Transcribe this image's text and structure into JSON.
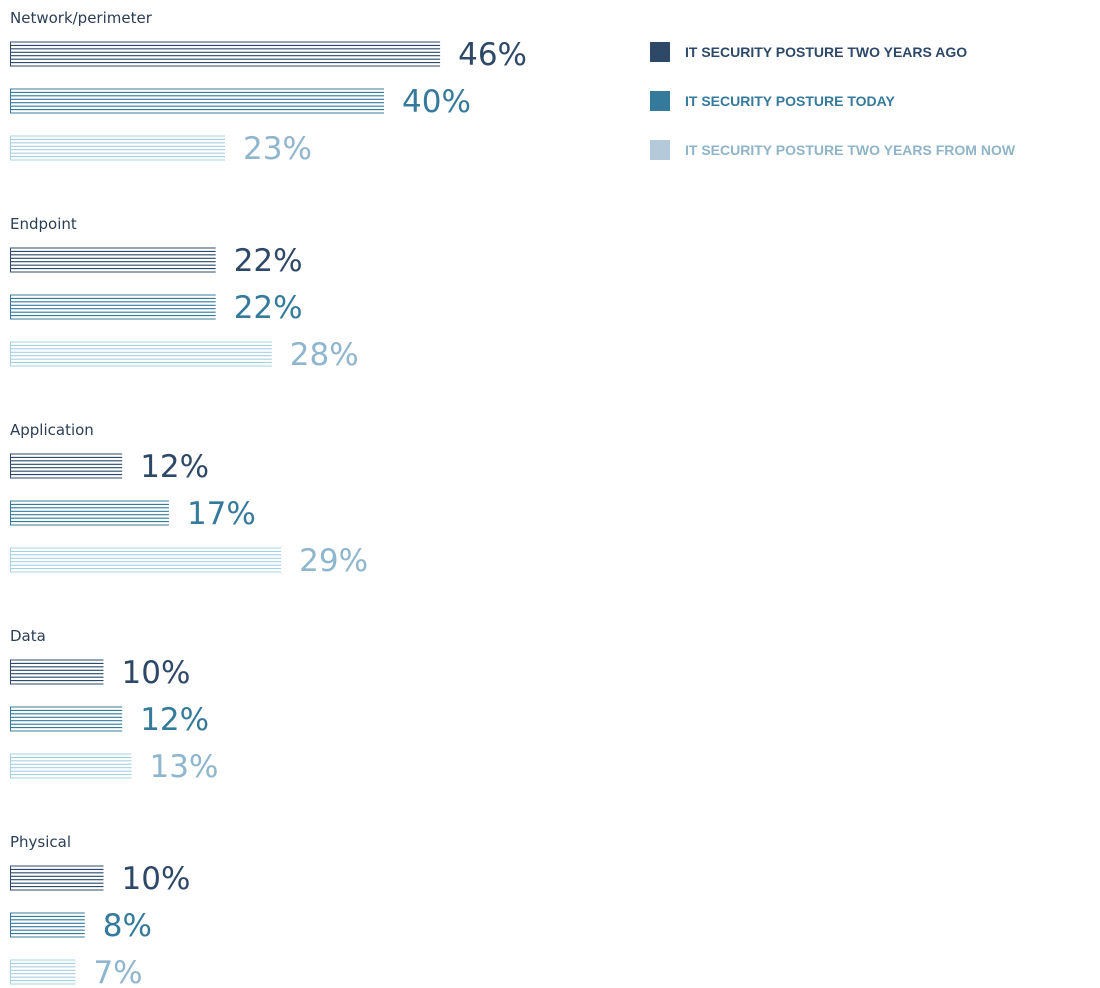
{
  "chart_data": {
    "type": "bar",
    "orientation": "horizontal",
    "value_suffix": "%",
    "categories": [
      "Network/perimeter",
      "Endpoint",
      "Application",
      "Data",
      "Physical"
    ],
    "series": [
      {
        "name": "IT SECURITY POSTURE TWO YEARS AGO",
        "color": "#2e4868",
        "values": [
          46,
          22,
          12,
          10,
          10
        ]
      },
      {
        "name": "IT SECURITY POSTURE TODAY",
        "color": "#357a9b",
        "values": [
          40,
          22,
          17,
          12,
          8
        ]
      },
      {
        "name": "IT SECURITY POSTURE TWO YEARS FROM NOW",
        "color": "#a9d0e0",
        "values": [
          23,
          28,
          29,
          13,
          7
        ]
      }
    ],
    "legend_position": "top-right",
    "grid": false
  },
  "colors": {
    "category_label": "#2b3e55",
    "legend_text": [
      "#2e4868",
      "#357a9b",
      "#8fb4c8"
    ],
    "legend_swatch": [
      "#2e4868",
      "#357a9b",
      "#b4c9d9"
    ],
    "value_text": [
      "#2e4868",
      "#357a9b",
      "#8fb6cc"
    ]
  }
}
